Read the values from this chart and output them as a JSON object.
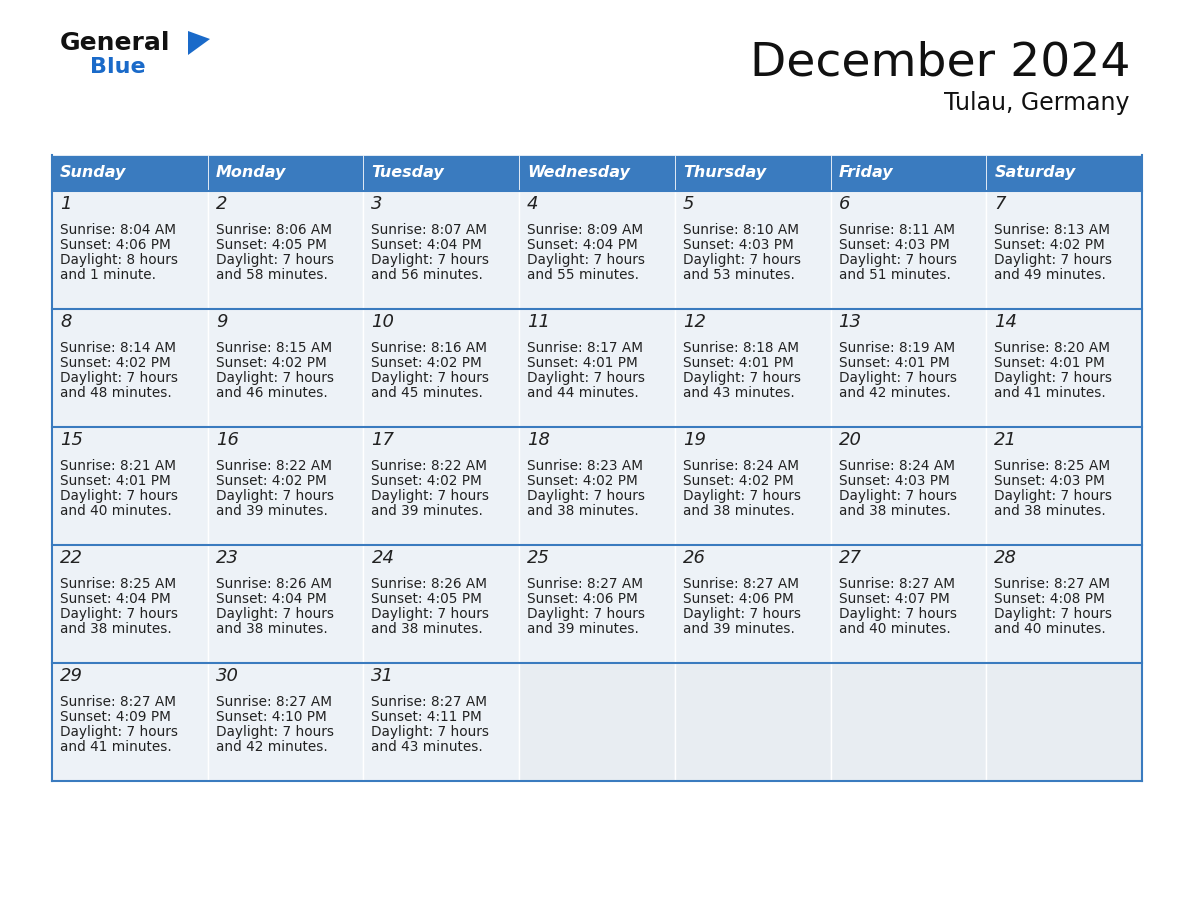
{
  "title": "December 2024",
  "subtitle": "Tulau, Germany",
  "header_color": "#3a7bbf",
  "cell_bg_color": "#edf2f7",
  "empty_bg_color": "#e8edf2",
  "text_color": "#222222",
  "days_of_week": [
    "Sunday",
    "Monday",
    "Tuesday",
    "Wednesday",
    "Thursday",
    "Friday",
    "Saturday"
  ],
  "calendar_data": [
    [
      {
        "day": "1",
        "sunrise": "8:04 AM",
        "sunset": "4:06 PM",
        "dl1": "Daylight: 8 hours",
        "dl2": "and 1 minute."
      },
      {
        "day": "2",
        "sunrise": "8:06 AM",
        "sunset": "4:05 PM",
        "dl1": "Daylight: 7 hours",
        "dl2": "and 58 minutes."
      },
      {
        "day": "3",
        "sunrise": "8:07 AM",
        "sunset": "4:04 PM",
        "dl1": "Daylight: 7 hours",
        "dl2": "and 56 minutes."
      },
      {
        "day": "4",
        "sunrise": "8:09 AM",
        "sunset": "4:04 PM",
        "dl1": "Daylight: 7 hours",
        "dl2": "and 55 minutes."
      },
      {
        "day": "5",
        "sunrise": "8:10 AM",
        "sunset": "4:03 PM",
        "dl1": "Daylight: 7 hours",
        "dl2": "and 53 minutes."
      },
      {
        "day": "6",
        "sunrise": "8:11 AM",
        "sunset": "4:03 PM",
        "dl1": "Daylight: 7 hours",
        "dl2": "and 51 minutes."
      },
      {
        "day": "7",
        "sunrise": "8:13 AM",
        "sunset": "4:02 PM",
        "dl1": "Daylight: 7 hours",
        "dl2": "and 49 minutes."
      }
    ],
    [
      {
        "day": "8",
        "sunrise": "8:14 AM",
        "sunset": "4:02 PM",
        "dl1": "Daylight: 7 hours",
        "dl2": "and 48 minutes."
      },
      {
        "day": "9",
        "sunrise": "8:15 AM",
        "sunset": "4:02 PM",
        "dl1": "Daylight: 7 hours",
        "dl2": "and 46 minutes."
      },
      {
        "day": "10",
        "sunrise": "8:16 AM",
        "sunset": "4:02 PM",
        "dl1": "Daylight: 7 hours",
        "dl2": "and 45 minutes."
      },
      {
        "day": "11",
        "sunrise": "8:17 AM",
        "sunset": "4:01 PM",
        "dl1": "Daylight: 7 hours",
        "dl2": "and 44 minutes."
      },
      {
        "day": "12",
        "sunrise": "8:18 AM",
        "sunset": "4:01 PM",
        "dl1": "Daylight: 7 hours",
        "dl2": "and 43 minutes."
      },
      {
        "day": "13",
        "sunrise": "8:19 AM",
        "sunset": "4:01 PM",
        "dl1": "Daylight: 7 hours",
        "dl2": "and 42 minutes."
      },
      {
        "day": "14",
        "sunrise": "8:20 AM",
        "sunset": "4:01 PM",
        "dl1": "Daylight: 7 hours",
        "dl2": "and 41 minutes."
      }
    ],
    [
      {
        "day": "15",
        "sunrise": "8:21 AM",
        "sunset": "4:01 PM",
        "dl1": "Daylight: 7 hours",
        "dl2": "and 40 minutes."
      },
      {
        "day": "16",
        "sunrise": "8:22 AM",
        "sunset": "4:02 PM",
        "dl1": "Daylight: 7 hours",
        "dl2": "and 39 minutes."
      },
      {
        "day": "17",
        "sunrise": "8:22 AM",
        "sunset": "4:02 PM",
        "dl1": "Daylight: 7 hours",
        "dl2": "and 39 minutes."
      },
      {
        "day": "18",
        "sunrise": "8:23 AM",
        "sunset": "4:02 PM",
        "dl1": "Daylight: 7 hours",
        "dl2": "and 38 minutes."
      },
      {
        "day": "19",
        "sunrise": "8:24 AM",
        "sunset": "4:02 PM",
        "dl1": "Daylight: 7 hours",
        "dl2": "and 38 minutes."
      },
      {
        "day": "20",
        "sunrise": "8:24 AM",
        "sunset": "4:03 PM",
        "dl1": "Daylight: 7 hours",
        "dl2": "and 38 minutes."
      },
      {
        "day": "21",
        "sunrise": "8:25 AM",
        "sunset": "4:03 PM",
        "dl1": "Daylight: 7 hours",
        "dl2": "and 38 minutes."
      }
    ],
    [
      {
        "day": "22",
        "sunrise": "8:25 AM",
        "sunset": "4:04 PM",
        "dl1": "Daylight: 7 hours",
        "dl2": "and 38 minutes."
      },
      {
        "day": "23",
        "sunrise": "8:26 AM",
        "sunset": "4:04 PM",
        "dl1": "Daylight: 7 hours",
        "dl2": "and 38 minutes."
      },
      {
        "day": "24",
        "sunrise": "8:26 AM",
        "sunset": "4:05 PM",
        "dl1": "Daylight: 7 hours",
        "dl2": "and 38 minutes."
      },
      {
        "day": "25",
        "sunrise": "8:27 AM",
        "sunset": "4:06 PM",
        "dl1": "Daylight: 7 hours",
        "dl2": "and 39 minutes."
      },
      {
        "day": "26",
        "sunrise": "8:27 AM",
        "sunset": "4:06 PM",
        "dl1": "Daylight: 7 hours",
        "dl2": "and 39 minutes."
      },
      {
        "day": "27",
        "sunrise": "8:27 AM",
        "sunset": "4:07 PM",
        "dl1": "Daylight: 7 hours",
        "dl2": "and 40 minutes."
      },
      {
        "day": "28",
        "sunrise": "8:27 AM",
        "sunset": "4:08 PM",
        "dl1": "Daylight: 7 hours",
        "dl2": "and 40 minutes."
      }
    ],
    [
      {
        "day": "29",
        "sunrise": "8:27 AM",
        "sunset": "4:09 PM",
        "dl1": "Daylight: 7 hours",
        "dl2": "and 41 minutes."
      },
      {
        "day": "30",
        "sunrise": "8:27 AM",
        "sunset": "4:10 PM",
        "dl1": "Daylight: 7 hours",
        "dl2": "and 42 minutes."
      },
      {
        "day": "31",
        "sunrise": "8:27 AM",
        "sunset": "4:11 PM",
        "dl1": "Daylight: 7 hours",
        "dl2": "and 43 minutes."
      },
      null,
      null,
      null,
      null
    ]
  ],
  "logo_general_color": "#111111",
  "logo_blue_color": "#1a6ac9",
  "logo_triangle_color": "#1a6ac9",
  "title_color": "#111111",
  "subtitle_color": "#111111"
}
